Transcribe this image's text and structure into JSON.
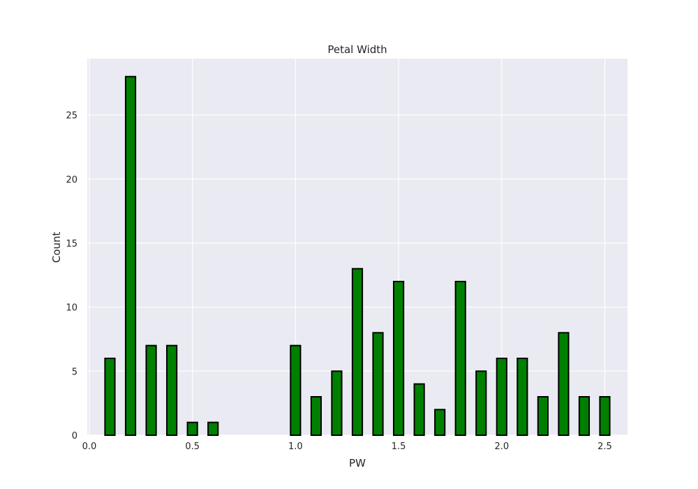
{
  "chart_data": {
    "type": "bar",
    "title": "Petal Width",
    "xlabel": "PW",
    "ylabel": "Count",
    "bar_color": "#008000",
    "edge_color": "#000000",
    "background": "#eaeaf2",
    "grid": true,
    "xlim": [
      -0.01,
      2.61
    ],
    "ylim": [
      0,
      29.4
    ],
    "x_ticks": [
      0.0,
      0.5,
      1.0,
      1.5,
      2.0,
      2.5
    ],
    "x_tick_labels": [
      "0.0",
      "0.5",
      "1.0",
      "1.5",
      "2.0",
      "2.5"
    ],
    "y_ticks": [
      0,
      5,
      10,
      15,
      20,
      25
    ],
    "y_tick_labels": [
      "0",
      "5",
      "10",
      "15",
      "20",
      "25"
    ],
    "x": [
      0.1,
      0.2,
      0.3,
      0.4,
      0.5,
      0.6,
      1.0,
      1.1,
      1.2,
      1.3,
      1.4,
      1.5,
      1.6,
      1.7,
      1.8,
      1.9,
      2.0,
      2.1,
      2.2,
      2.3,
      2.4,
      2.5
    ],
    "values": [
      6,
      28,
      7,
      7,
      1,
      1,
      7,
      3,
      5,
      13,
      8,
      12,
      4,
      2,
      12,
      5,
      6,
      6,
      3,
      8,
      3,
      3
    ],
    "bar_width": 0.048
  }
}
